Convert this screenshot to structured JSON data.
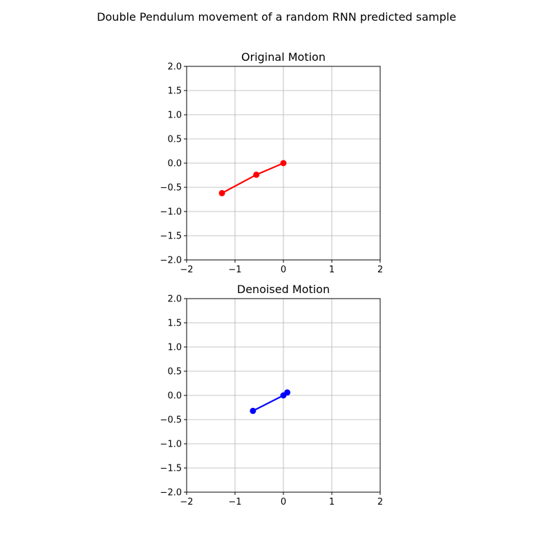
{
  "suptitle": "Double Pendulum movement of a random RNN predicted sample",
  "chart_data": [
    {
      "type": "line",
      "title": "Original Motion",
      "xlim": [
        -2,
        2
      ],
      "ylim": [
        -2,
        2
      ],
      "xticks": [
        -2,
        -1,
        0,
        1,
        2
      ],
      "yticks": [
        -2.0,
        -1.5,
        -1.0,
        -0.5,
        0.0,
        0.5,
        1.0,
        1.5,
        2.0
      ],
      "xtick_labels": [
        "−2",
        "−1",
        "0",
        "1",
        "2"
      ],
      "ytick_labels": [
        "−2.0",
        "−1.5",
        "−1.0",
        "−0.5",
        "0.0",
        "0.5",
        "1.0",
        "1.5",
        "2.0"
      ],
      "grid": true,
      "color": "#ff0000",
      "markers": true,
      "x": [
        0,
        -0.56,
        -1.27
      ],
      "y": [
        0,
        -0.24,
        -0.62
      ]
    },
    {
      "type": "line",
      "title": "Denoised Motion",
      "xlim": [
        -2,
        2
      ],
      "ylim": [
        -2,
        2
      ],
      "xticks": [
        -2,
        -1,
        0,
        1,
        2
      ],
      "yticks": [
        -2.0,
        -1.5,
        -1.0,
        -0.5,
        0.0,
        0.5,
        1.0,
        1.5,
        2.0
      ],
      "xtick_labels": [
        "−2",
        "−1",
        "0",
        "1",
        "2"
      ],
      "ytick_labels": [
        "−2.0",
        "−1.5",
        "−1.0",
        "−0.5",
        "0.0",
        "0.5",
        "1.0",
        "1.5",
        "2.0"
      ],
      "grid": true,
      "color": "#0000ff",
      "markers": true,
      "x": [
        0.08,
        0,
        -0.63
      ],
      "y": [
        0.06,
        0,
        -0.32
      ]
    }
  ]
}
